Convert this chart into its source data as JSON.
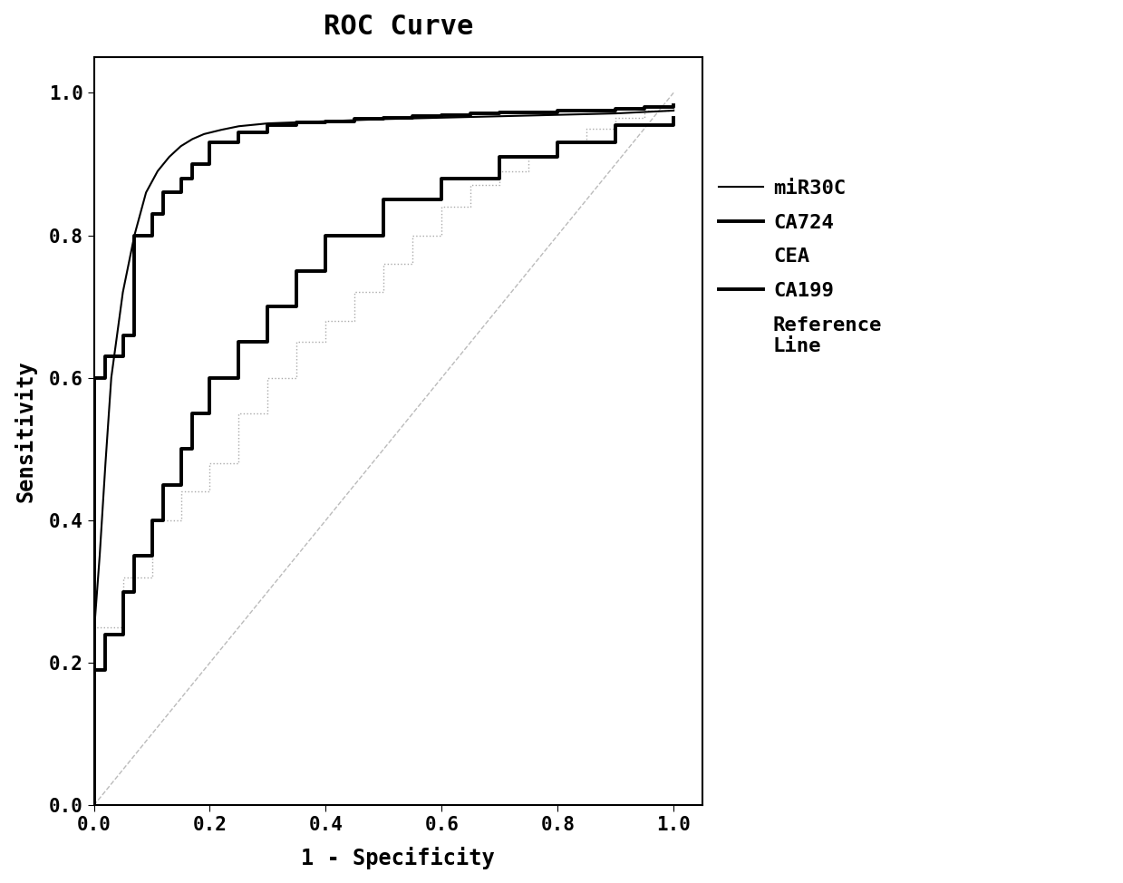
{
  "title": "ROC Curve",
  "xlabel": "1 - Specificity",
  "ylabel": "Sensitivity",
  "xlim": [
    0.0,
    1.05
  ],
  "ylim": [
    0.0,
    1.05
  ],
  "xticks": [
    0.0,
    0.2,
    0.4,
    0.6,
    0.8,
    1.0
  ],
  "yticks": [
    0.0,
    0.2,
    0.4,
    0.6,
    0.8,
    1.0
  ],
  "title_fontsize": 22,
  "label_fontsize": 17,
  "tick_fontsize": 15,
  "legend_fontsize": 16,
  "miR30C": {
    "x": [
      0.0,
      0.01,
      0.02,
      0.03,
      0.05,
      0.07,
      0.09,
      0.11,
      0.13,
      0.15,
      0.17,
      0.19,
      0.22,
      0.25,
      0.3,
      0.4,
      0.5,
      0.6,
      0.7,
      0.8,
      0.9,
      0.95,
      1.0
    ],
    "y": [
      0.24,
      0.35,
      0.48,
      0.6,
      0.72,
      0.8,
      0.86,
      0.89,
      0.91,
      0.925,
      0.935,
      0.942,
      0.948,
      0.953,
      0.957,
      0.96,
      0.963,
      0.965,
      0.967,
      0.969,
      0.971,
      0.973,
      0.975
    ],
    "color": "#000000",
    "linewidth": 1.5,
    "linestyle": "-",
    "label": "miR30C"
  },
  "CA724": {
    "x": [
      0.0,
      0.0,
      0.02,
      0.02,
      0.05,
      0.05,
      0.07,
      0.07,
      0.1,
      0.1,
      0.12,
      0.12,
      0.15,
      0.15,
      0.17,
      0.17,
      0.2,
      0.2,
      0.25,
      0.25,
      0.3,
      0.3,
      0.35,
      0.35,
      0.4,
      0.4,
      0.45,
      0.45,
      0.5,
      0.5,
      0.55,
      0.55,
      0.6,
      0.6,
      0.65,
      0.65,
      0.7,
      0.7,
      0.8,
      0.8,
      0.9,
      0.9,
      0.95,
      0.95,
      1.0,
      1.0
    ],
    "y": [
      0.0,
      0.6,
      0.6,
      0.63,
      0.63,
      0.66,
      0.66,
      0.8,
      0.8,
      0.83,
      0.83,
      0.86,
      0.86,
      0.88,
      0.88,
      0.9,
      0.9,
      0.93,
      0.93,
      0.945,
      0.945,
      0.955,
      0.955,
      0.958,
      0.958,
      0.96,
      0.96,
      0.963,
      0.963,
      0.965,
      0.965,
      0.967,
      0.967,
      0.969,
      0.969,
      0.971,
      0.971,
      0.973,
      0.973,
      0.975,
      0.975,
      0.978,
      0.978,
      0.98,
      0.98,
      0.983
    ],
    "color": "#000000",
    "linewidth": 2.8,
    "linestyle": "-",
    "label": "CA724"
  },
  "CEA": {
    "x": [
      0.0,
      0.0,
      0.05,
      0.05,
      0.1,
      0.1,
      0.15,
      0.15,
      0.2,
      0.2,
      0.25,
      0.25,
      0.3,
      0.3,
      0.35,
      0.35,
      0.4,
      0.4,
      0.45,
      0.45,
      0.5,
      0.5,
      0.55,
      0.55,
      0.6,
      0.6,
      0.65,
      0.65,
      0.7,
      0.7,
      0.75,
      0.75,
      0.8,
      0.8,
      0.85,
      0.85,
      0.9,
      0.9,
      0.95,
      0.95,
      1.0,
      1.0
    ],
    "y": [
      0.0,
      0.25,
      0.25,
      0.32,
      0.32,
      0.4,
      0.4,
      0.44,
      0.44,
      0.48,
      0.48,
      0.55,
      0.55,
      0.6,
      0.6,
      0.65,
      0.65,
      0.68,
      0.68,
      0.72,
      0.72,
      0.76,
      0.76,
      0.8,
      0.8,
      0.84,
      0.84,
      0.87,
      0.87,
      0.89,
      0.89,
      0.91,
      0.91,
      0.93,
      0.93,
      0.95,
      0.95,
      0.965,
      0.965,
      0.975,
      0.975,
      0.985
    ],
    "color": "#aaaaaa",
    "linewidth": 1.0,
    "linestyle": ":",
    "label": "CEA"
  },
  "CA199": {
    "x": [
      0.0,
      0.0,
      0.02,
      0.02,
      0.05,
      0.05,
      0.07,
      0.07,
      0.1,
      0.1,
      0.12,
      0.12,
      0.15,
      0.15,
      0.17,
      0.17,
      0.2,
      0.2,
      0.25,
      0.25,
      0.3,
      0.3,
      0.35,
      0.35,
      0.4,
      0.4,
      0.5,
      0.5,
      0.6,
      0.6,
      0.7,
      0.7,
      0.8,
      0.8,
      0.9,
      0.9,
      1.0,
      1.0
    ],
    "y": [
      0.0,
      0.19,
      0.19,
      0.24,
      0.24,
      0.3,
      0.3,
      0.35,
      0.35,
      0.4,
      0.4,
      0.45,
      0.45,
      0.5,
      0.5,
      0.55,
      0.55,
      0.6,
      0.6,
      0.65,
      0.65,
      0.7,
      0.7,
      0.75,
      0.75,
      0.8,
      0.8,
      0.85,
      0.85,
      0.88,
      0.88,
      0.91,
      0.91,
      0.93,
      0.93,
      0.955,
      0.955,
      0.965
    ],
    "color": "#000000",
    "linewidth": 2.8,
    "linestyle": "-",
    "label": "CA199"
  },
  "reference": {
    "x": [
      0.0,
      1.0
    ],
    "y": [
      0.0,
      1.0
    ],
    "color": "#bbbbbb",
    "linewidth": 1.0,
    "linestyle": "--",
    "label": "Reference\nLine"
  }
}
